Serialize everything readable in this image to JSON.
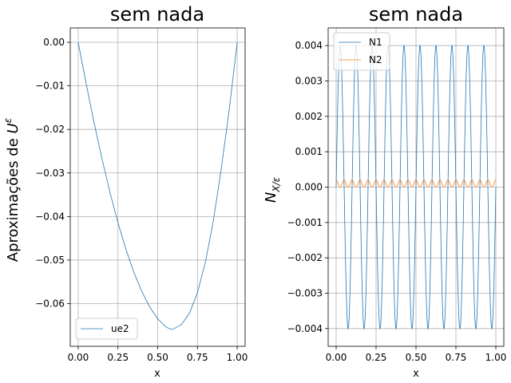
{
  "chart_data": [
    {
      "type": "line",
      "title": "sem nada",
      "xlabel": "x",
      "ylabel": "Aproximações de U^ε",
      "xlim": [
        -0.05,
        1.05
      ],
      "ylim": [
        -0.0698,
        0.0033
      ],
      "xticks": [
        0.0,
        0.25,
        0.5,
        0.75,
        1.0
      ],
      "xtick_labels": [
        "0.00",
        "0.25",
        "0.50",
        "0.75",
        "1.00"
      ],
      "yticks": [
        0.0,
        -0.01,
        -0.02,
        -0.03,
        -0.04,
        -0.05,
        -0.06
      ],
      "ytick_labels": [
        "0.00",
        "−0.01",
        "−0.02",
        "−0.03",
        "−0.04",
        "−0.05",
        "−0.06"
      ],
      "grid": true,
      "legend_position": "lower-left",
      "series": [
        {
          "name": "ue2",
          "color": "#1f77b4",
          "x": [
            0.0,
            0.05,
            0.1,
            0.15,
            0.2,
            0.25,
            0.3,
            0.35,
            0.4,
            0.45,
            0.5,
            0.55,
            0.58,
            0.6,
            0.65,
            0.7,
            0.75,
            0.8,
            0.85,
            0.9,
            0.95,
            1.0
          ],
          "y": [
            0.0,
            -0.0095,
            -0.0185,
            -0.0268,
            -0.0345,
            -0.0414,
            -0.0475,
            -0.0528,
            -0.0572,
            -0.0608,
            -0.0635,
            -0.0653,
            -0.0659,
            -0.0658,
            -0.0648,
            -0.0622,
            -0.0575,
            -0.0505,
            -0.041,
            -0.029,
            -0.0155,
            0.0
          ]
        }
      ]
    },
    {
      "type": "line",
      "title": "sem nada",
      "xlabel": "x",
      "ylabel": "N_{X/ε}",
      "xlim": [
        -0.05,
        1.05
      ],
      "ylim": [
        -0.0045,
        0.0045
      ],
      "xticks": [
        0.0,
        0.25,
        0.5,
        0.75,
        1.0
      ],
      "xtick_labels": [
        "0.00",
        "0.25",
        "0.50",
        "0.75",
        "1.00"
      ],
      "yticks": [
        0.004,
        0.003,
        0.002,
        0.001,
        0.0,
        -0.001,
        -0.002,
        -0.003,
        -0.004
      ],
      "ytick_labels": [
        "0.004",
        "0.003",
        "0.002",
        "0.001",
        "0.000",
        "−0.001",
        "−0.002",
        "−0.003",
        "−0.004"
      ],
      "grid": true,
      "legend_position": "upper-left",
      "series": [
        {
          "name": "N1",
          "color": "#1f77b4",
          "function": "0.004*sin(2*pi*10*x)"
        },
        {
          "name": "N2",
          "color": "#ff7f0e",
          "function": "0.0001 + 0.0001*cos(2*pi*20*x)"
        }
      ]
    }
  ]
}
